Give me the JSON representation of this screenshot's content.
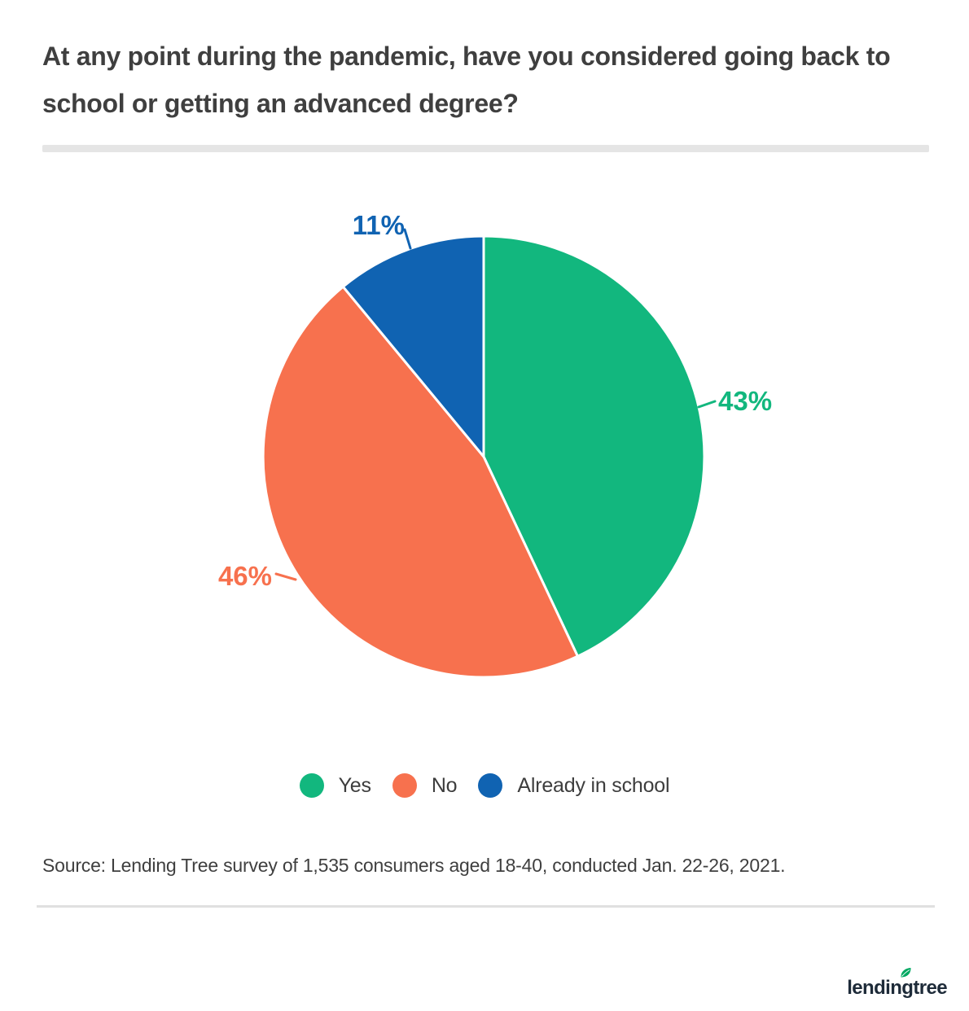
{
  "chart_data": {
    "type": "pie",
    "title": "At any point during the pandemic, have you considered going back to school or getting an advanced degree?",
    "slices": [
      {
        "name": "Yes",
        "value": 43,
        "display": "43%",
        "color": "#12B77E"
      },
      {
        "name": "No",
        "value": 46,
        "display": "46%",
        "color": "#F7714E"
      },
      {
        "name": "Already in school",
        "value": 11,
        "display": "11%",
        "color": "#1063B2"
      }
    ],
    "start_angle_deg": 0,
    "direction": "clockwise",
    "slice_border_color": "#ffffff",
    "legend_position": "bottom",
    "label_style": "percent labels outside with leader lines"
  },
  "source": {
    "text": "Source: Lending Tree survey of 1,535 consumers aged 18-40, conducted Jan. 22-26, 2021."
  },
  "branding": {
    "logo_text": "lendingtree",
    "logo_color": "#1E2B39",
    "leaf_color": "#00A862"
  },
  "theme": {
    "background": "#FFFFFF",
    "title_color": "#3F3F3F",
    "divider_color": "#E5E5E5"
  }
}
